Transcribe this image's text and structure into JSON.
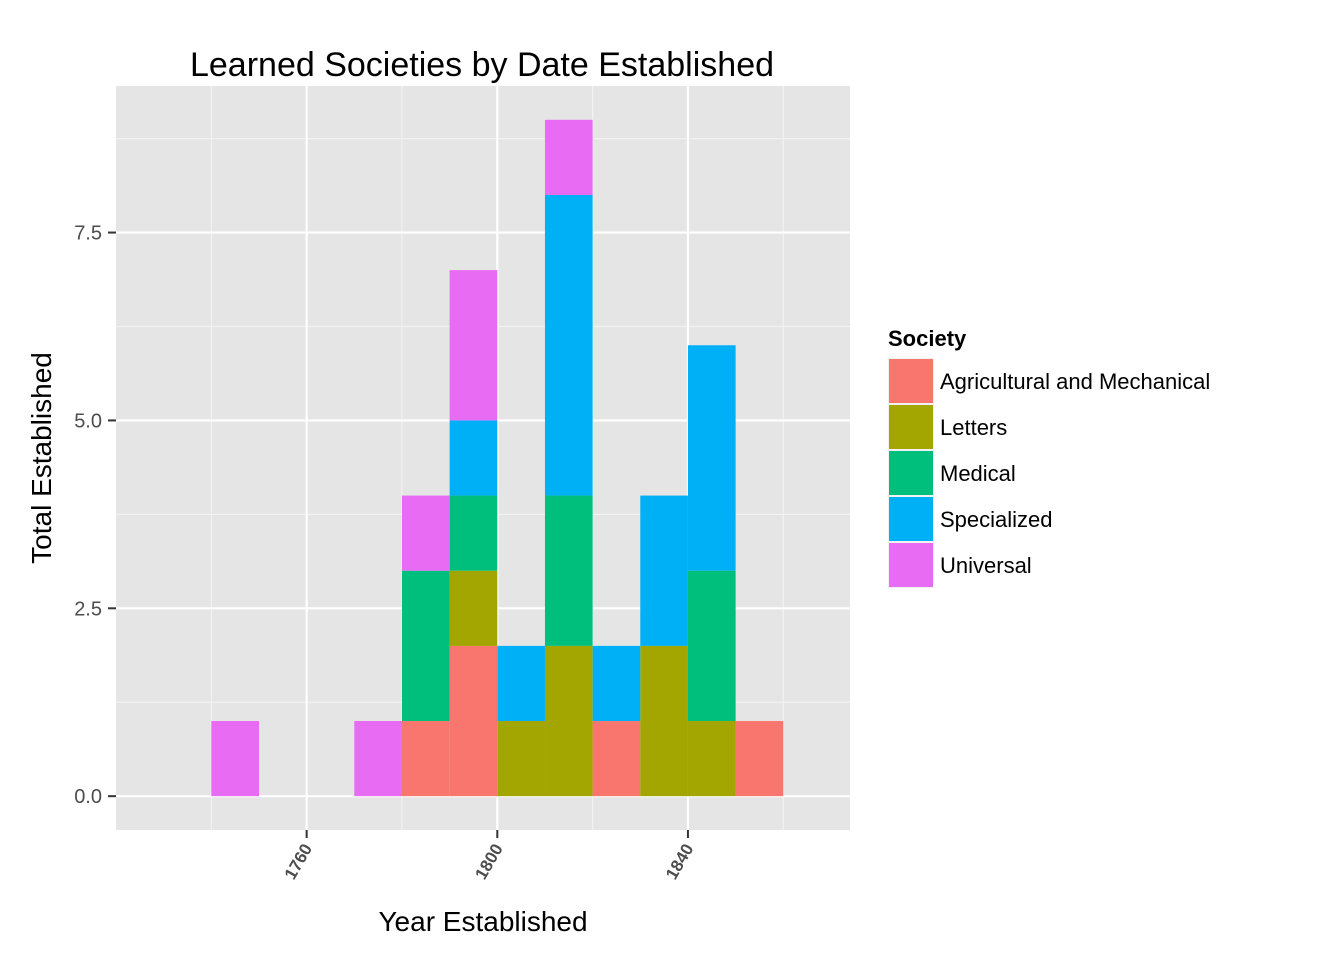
{
  "chart_data": {
    "type": "bar",
    "stacked": true,
    "title": "Learned Societies by Date Established",
    "xlabel": "Year Established",
    "ylabel": "Total Established",
    "bin_width": 10,
    "x_bin_starts": [
      1740,
      1750,
      1760,
      1770,
      1780,
      1790,
      1800,
      1810,
      1820,
      1830,
      1840,
      1850
    ],
    "xlim": [
      1720,
      1874
    ],
    "ylim": [
      -0.45,
      9.45
    ],
    "x_ticks": [
      1760,
      1800,
      1840
    ],
    "y_ticks": [
      0.0,
      2.5,
      5.0,
      7.5
    ],
    "x_tick_labels": [
      "1760",
      "1800",
      "1840"
    ],
    "y_tick_labels": [
      "0.0",
      "2.5",
      "5.0",
      "7.5"
    ],
    "grid": true,
    "legend": {
      "title": "Society",
      "position": "right"
    },
    "series": [
      {
        "name": "Agricultural and Mechanical",
        "color": "#F8766D",
        "values": [
          0,
          0,
          0,
          0,
          1,
          2,
          0,
          0,
          1,
          0,
          0,
          1
        ]
      },
      {
        "name": "Letters",
        "color": "#A3A500",
        "values": [
          0,
          0,
          0,
          0,
          0,
          1,
          1,
          2,
          0,
          2,
          1,
          0
        ]
      },
      {
        "name": "Medical",
        "color": "#00BF7D",
        "values": [
          0,
          0,
          0,
          0,
          2,
          1,
          0,
          2,
          0,
          0,
          2,
          0
        ]
      },
      {
        "name": "Specialized",
        "color": "#00B0F6",
        "values": [
          0,
          0,
          0,
          0,
          0,
          1,
          1,
          4,
          1,
          2,
          3,
          0
        ]
      },
      {
        "name": "Universal",
        "color": "#E76BF3",
        "values": [
          1,
          0,
          0,
          1,
          1,
          2,
          0,
          1,
          0,
          0,
          0,
          0
        ]
      }
    ]
  }
}
